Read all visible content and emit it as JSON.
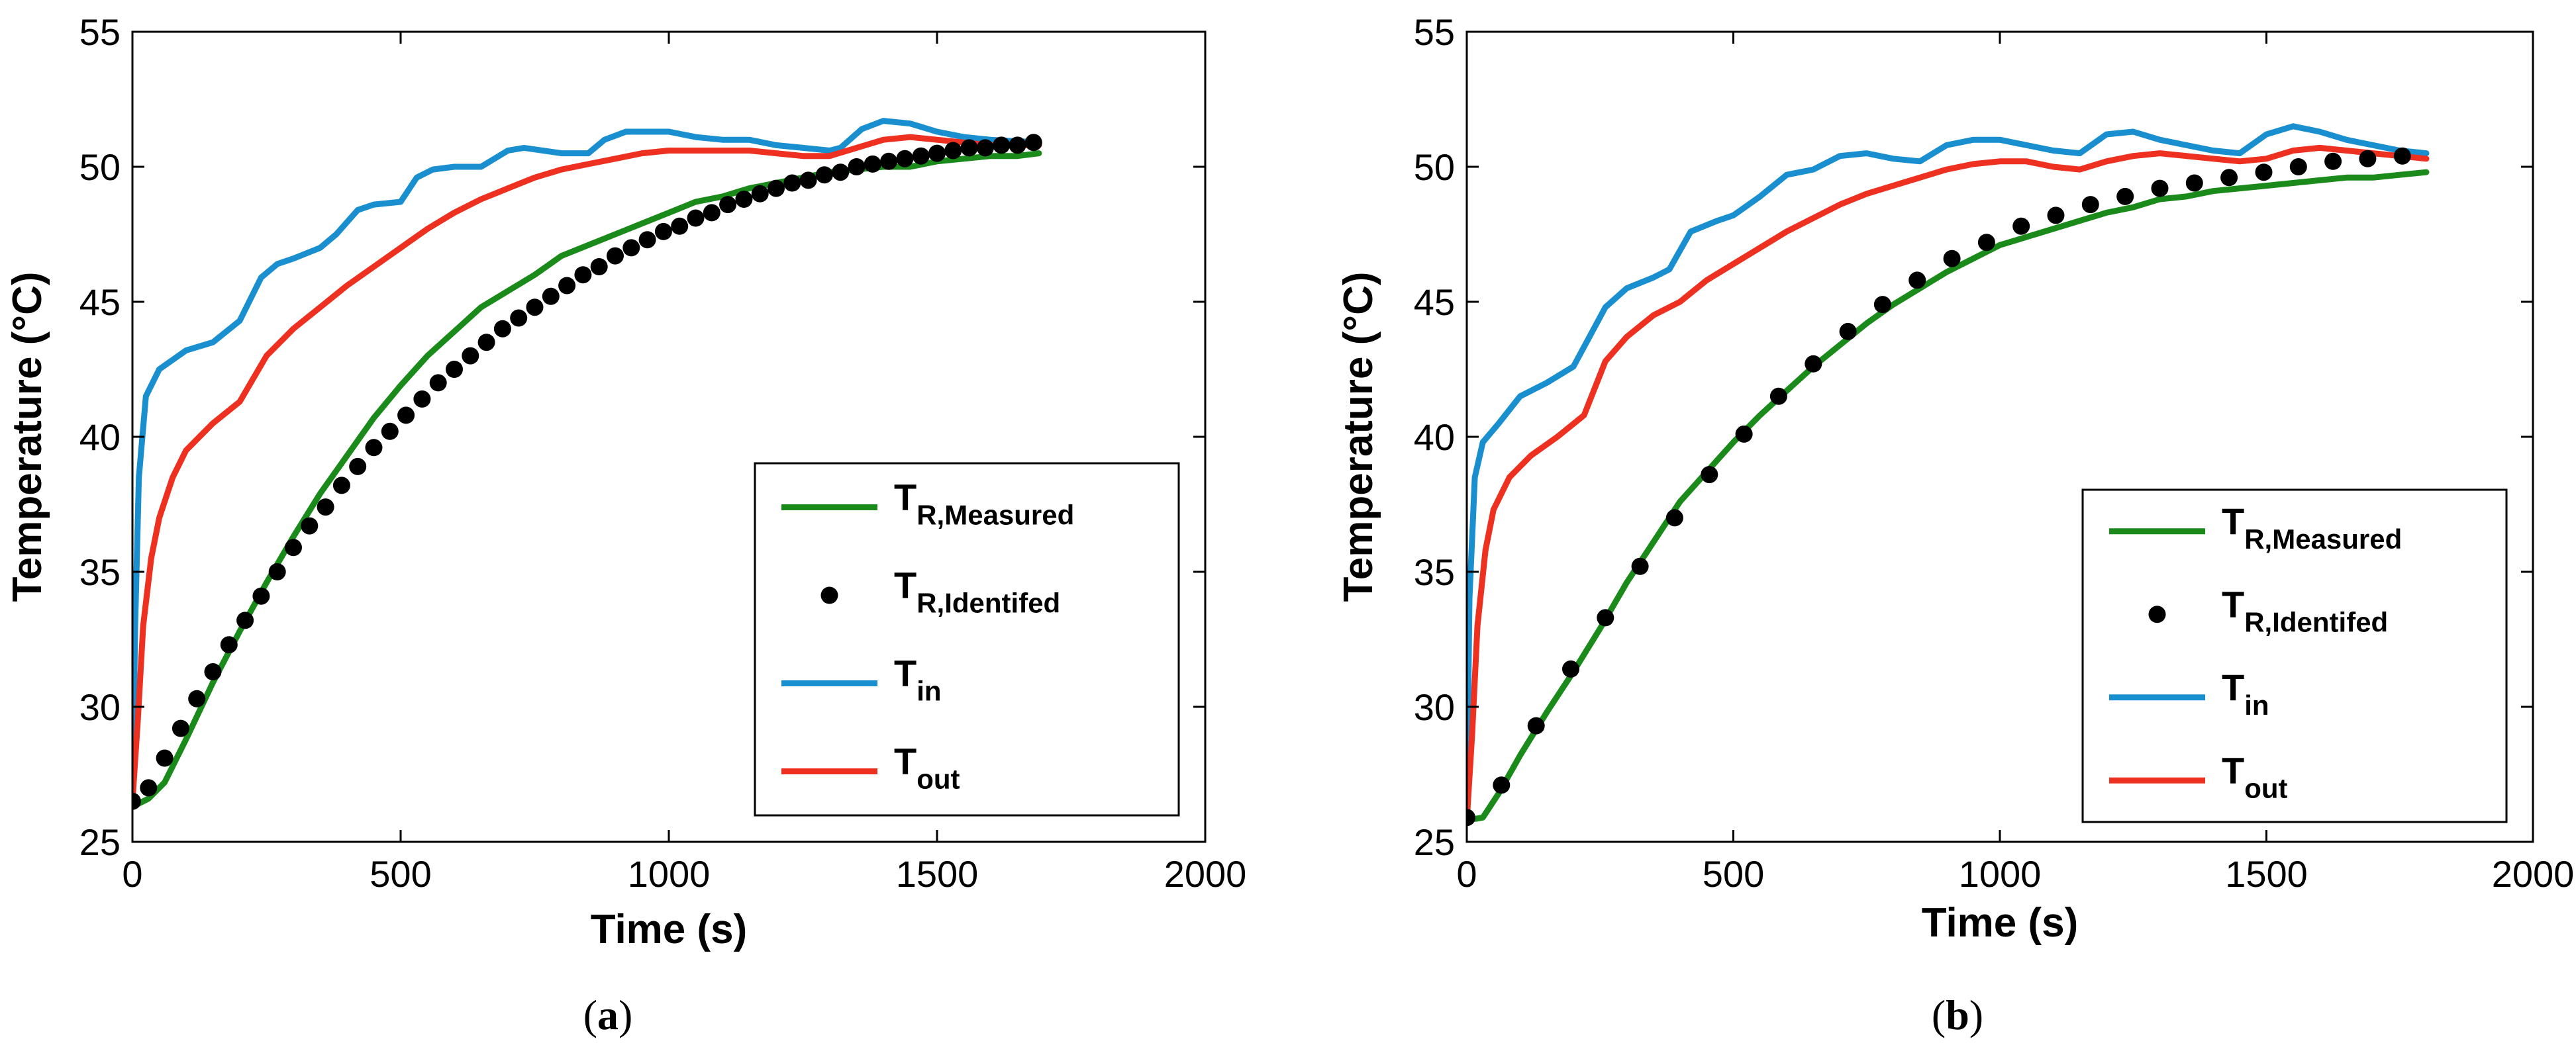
{
  "chart_data": [
    {
      "type": "line",
      "panel_label": "a",
      "xlabel": "Time (s)",
      "ylabel": "Temperature (°C)",
      "xlim": [
        0,
        2000
      ],
      "ylim": [
        25,
        55
      ],
      "xticks": [
        "0",
        "500",
        "1000",
        "1500",
        "2000"
      ],
      "yticks": [
        "25",
        "30",
        "35",
        "40",
        "45",
        "50",
        "55"
      ],
      "legend_position": "lower-right",
      "series": [
        {
          "name": "T_R,Measured",
          "label_main": "T",
          "label_sub": "R,Measured",
          "color": "#1a8a1a",
          "style": "line",
          "x": [
            0,
            30,
            60,
            100,
            150,
            200,
            250,
            300,
            350,
            400,
            450,
            500,
            550,
            600,
            650,
            700,
            750,
            800,
            850,
            900,
            950,
            1000,
            1050,
            1100,
            1150,
            1200,
            1250,
            1300,
            1350,
            1400,
            1450,
            1500,
            1550,
            1600,
            1650,
            1690
          ],
          "y": [
            26.3,
            26.6,
            27.2,
            28.8,
            30.9,
            32.8,
            34.6,
            36.3,
            37.9,
            39.3,
            40.7,
            41.9,
            43.0,
            43.9,
            44.8,
            45.4,
            46.0,
            46.7,
            47.1,
            47.5,
            47.9,
            48.3,
            48.7,
            48.9,
            49.2,
            49.4,
            49.6,
            49.8,
            49.9,
            50.0,
            50.0,
            50.2,
            50.3,
            50.4,
            50.4,
            50.5
          ]
        },
        {
          "name": "T_R,Identifed",
          "label_main": "T",
          "label_sub": "R,Identifed",
          "color": "#000000",
          "style": "markers",
          "x": [
            0,
            30,
            60,
            90,
            120,
            150,
            180,
            210,
            240,
            270,
            300,
            330,
            360,
            390,
            420,
            450,
            480,
            510,
            540,
            570,
            600,
            630,
            660,
            690,
            720,
            750,
            780,
            810,
            840,
            870,
            900,
            930,
            960,
            990,
            1020,
            1050,
            1080,
            1110,
            1140,
            1170,
            1200,
            1230,
            1260,
            1290,
            1320,
            1350,
            1380,
            1410,
            1440,
            1470,
            1500,
            1530,
            1560,
            1590,
            1620,
            1650,
            1680
          ],
          "y": [
            26.5,
            27.0,
            28.1,
            29.2,
            30.3,
            31.3,
            32.3,
            33.2,
            34.1,
            35.0,
            35.9,
            36.7,
            37.4,
            38.2,
            38.9,
            39.6,
            40.2,
            40.8,
            41.4,
            42.0,
            42.5,
            43.0,
            43.5,
            44.0,
            44.4,
            44.8,
            45.2,
            45.6,
            46.0,
            46.3,
            46.7,
            47.0,
            47.3,
            47.6,
            47.8,
            48.1,
            48.3,
            48.6,
            48.8,
            49.0,
            49.2,
            49.4,
            49.5,
            49.7,
            49.8,
            50.0,
            50.1,
            50.2,
            50.3,
            50.4,
            50.5,
            50.6,
            50.7,
            50.7,
            50.8,
            50.8,
            50.9
          ]
        },
        {
          "name": "T_in",
          "label_main": "T",
          "label_sub": "in",
          "color": "#1a8fd0",
          "style": "line",
          "x": [
            0,
            5,
            12,
            25,
            50,
            100,
            150,
            200,
            240,
            270,
            300,
            350,
            380,
            420,
            450,
            500,
            530,
            560,
            600,
            650,
            700,
            730,
            800,
            850,
            880,
            920,
            950,
            1000,
            1050,
            1100,
            1150,
            1200,
            1250,
            1300,
            1320,
            1360,
            1400,
            1450,
            1500,
            1550,
            1600,
            1690
          ],
          "y": [
            26.5,
            33.0,
            38.5,
            41.5,
            42.5,
            43.2,
            43.5,
            44.3,
            45.9,
            46.4,
            46.6,
            47.0,
            47.5,
            48.4,
            48.6,
            48.7,
            49.6,
            49.9,
            50.0,
            50.0,
            50.6,
            50.7,
            50.5,
            50.5,
            51.0,
            51.3,
            51.3,
            51.3,
            51.1,
            51.0,
            51.0,
            50.8,
            50.7,
            50.6,
            50.7,
            51.4,
            51.7,
            51.6,
            51.3,
            51.1,
            51.0,
            50.9
          ]
        },
        {
          "name": "T_out",
          "label_main": "T",
          "label_sub": "out",
          "color": "#ee3020",
          "style": "line",
          "x": [
            0,
            10,
            20,
            35,
            50,
            75,
            100,
            150,
            200,
            250,
            300,
            350,
            400,
            450,
            500,
            550,
            600,
            650,
            700,
            750,
            800,
            850,
            900,
            950,
            1000,
            1050,
            1100,
            1150,
            1200,
            1250,
            1300,
            1350,
            1400,
            1450,
            1500,
            1550,
            1600,
            1690
          ],
          "y": [
            26.5,
            29.5,
            33.0,
            35.5,
            37.0,
            38.5,
            39.5,
            40.5,
            41.3,
            43.0,
            44.0,
            44.8,
            45.6,
            46.3,
            47.0,
            47.7,
            48.3,
            48.8,
            49.2,
            49.6,
            49.9,
            50.1,
            50.3,
            50.5,
            50.6,
            50.6,
            50.6,
            50.6,
            50.5,
            50.4,
            50.4,
            50.7,
            51.0,
            51.1,
            51.0,
            50.9,
            50.8,
            50.8
          ]
        }
      ]
    },
    {
      "type": "line",
      "panel_label": "b",
      "xlabel": "Time (s)",
      "ylabel": "Temperature (°C)",
      "xlim": [
        0,
        2000
      ],
      "ylim": [
        25,
        55
      ],
      "xticks": [
        "0",
        "500",
        "1000",
        "1500",
        "2000"
      ],
      "yticks": [
        "25",
        "30",
        "35",
        "40",
        "45",
        "50",
        "55"
      ],
      "legend_position": "lower-right",
      "series": [
        {
          "name": "T_R,Measured",
          "label_main": "T",
          "label_sub": "R,Measured",
          "color": "#1a8a1a",
          "style": "line",
          "x": [
            0,
            30,
            60,
            100,
            150,
            200,
            250,
            300,
            350,
            400,
            450,
            500,
            550,
            600,
            650,
            700,
            750,
            800,
            850,
            900,
            950,
            1000,
            1050,
            1100,
            1150,
            1200,
            1250,
            1300,
            1350,
            1400,
            1450,
            1500,
            1550,
            1600,
            1650,
            1700,
            1750,
            1800
          ],
          "y": [
            25.8,
            25.9,
            26.8,
            28.2,
            29.8,
            31.3,
            32.9,
            34.6,
            36.1,
            37.6,
            38.7,
            39.8,
            40.8,
            41.7,
            42.6,
            43.4,
            44.2,
            44.9,
            45.5,
            46.1,
            46.6,
            47.1,
            47.4,
            47.7,
            48.0,
            48.3,
            48.5,
            48.8,
            48.9,
            49.1,
            49.2,
            49.3,
            49.4,
            49.5,
            49.6,
            49.6,
            49.7,
            49.8
          ]
        },
        {
          "name": "T_R,Identifed",
          "label_main": "T",
          "label_sub": "R,Identifed",
          "color": "#000000",
          "style": "markers",
          "x": [
            0,
            65,
            130,
            195,
            260,
            325,
            390,
            455,
            520,
            585,
            650,
            715,
            780,
            845,
            910,
            975,
            1040,
            1105,
            1170,
            1235,
            1300,
            1365,
            1430,
            1495,
            1560,
            1625,
            1690,
            1755
          ],
          "y": [
            25.9,
            27.1,
            29.3,
            31.4,
            33.3,
            35.2,
            37.0,
            38.6,
            40.1,
            41.5,
            42.7,
            43.9,
            44.9,
            45.8,
            46.6,
            47.2,
            47.8,
            48.2,
            48.6,
            48.9,
            49.2,
            49.4,
            49.6,
            49.8,
            50.0,
            50.2,
            50.3,
            50.4
          ]
        },
        {
          "name": "T_in",
          "label_main": "T",
          "label_sub": "in",
          "color": "#1a8fd0",
          "style": "line",
          "x": [
            0,
            5,
            15,
            30,
            60,
            100,
            150,
            200,
            230,
            260,
            300,
            350,
            380,
            420,
            470,
            500,
            550,
            600,
            650,
            700,
            750,
            800,
            850,
            900,
            950,
            1000,
            1050,
            1100,
            1150,
            1200,
            1250,
            1300,
            1350,
            1400,
            1450,
            1500,
            1550,
            1600,
            1650,
            1700,
            1750,
            1800
          ],
          "y": [
            25.8,
            34.0,
            38.5,
            39.8,
            40.5,
            41.5,
            42.0,
            42.6,
            43.7,
            44.8,
            45.5,
            45.9,
            46.2,
            47.6,
            48.0,
            48.2,
            48.9,
            49.7,
            49.9,
            50.4,
            50.5,
            50.3,
            50.2,
            50.8,
            51.0,
            51.0,
            50.8,
            50.6,
            50.5,
            51.2,
            51.3,
            51.0,
            50.8,
            50.6,
            50.5,
            51.2,
            51.5,
            51.3,
            51.0,
            50.8,
            50.6,
            50.5
          ]
        },
        {
          "name": "T_out",
          "label_main": "T",
          "label_sub": "out",
          "color": "#ee3020",
          "style": "line",
          "x": [
            0,
            10,
            20,
            35,
            50,
            80,
            120,
            170,
            220,
            260,
            300,
            350,
            400,
            450,
            500,
            550,
            600,
            650,
            700,
            750,
            800,
            850,
            900,
            950,
            1000,
            1050,
            1100,
            1150,
            1200,
            1250,
            1300,
            1350,
            1400,
            1450,
            1500,
            1550,
            1600,
            1650,
            1700,
            1750,
            1800
          ],
          "y": [
            25.8,
            29.0,
            33.0,
            35.8,
            37.3,
            38.5,
            39.3,
            40.0,
            40.8,
            42.8,
            43.7,
            44.5,
            45.0,
            45.8,
            46.4,
            47.0,
            47.6,
            48.1,
            48.6,
            49.0,
            49.3,
            49.6,
            49.9,
            50.1,
            50.2,
            50.2,
            50.0,
            49.9,
            50.2,
            50.4,
            50.5,
            50.4,
            50.3,
            50.2,
            50.3,
            50.6,
            50.7,
            50.6,
            50.5,
            50.4,
            50.3
          ]
        }
      ]
    }
  ],
  "captions": [
    {
      "open": "(",
      "letter": "a",
      "close": ")"
    },
    {
      "open": "(",
      "letter": "b",
      "close": ")"
    }
  ]
}
